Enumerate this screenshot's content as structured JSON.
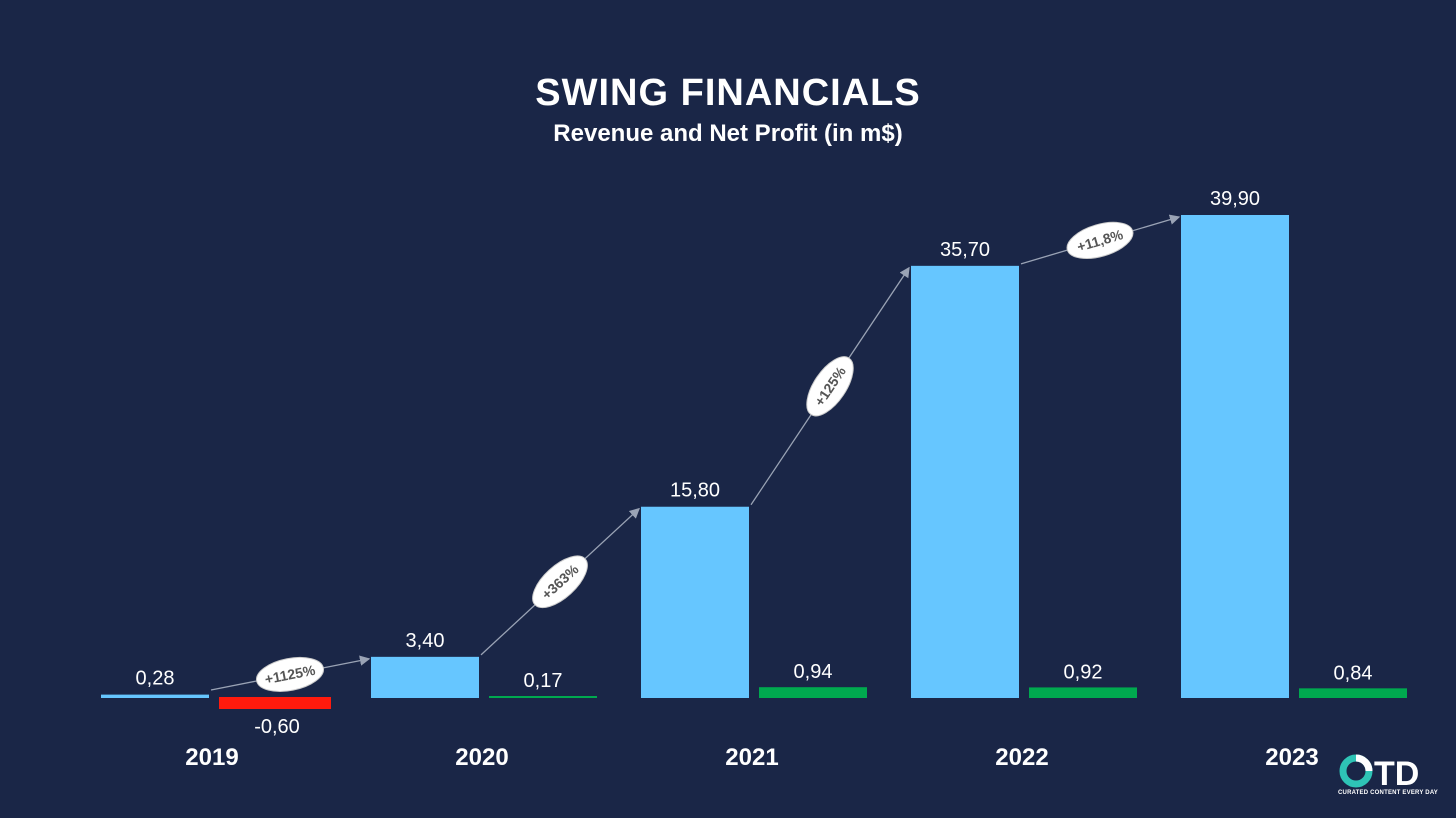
{
  "header": {
    "title": "SWING FINANCIALS",
    "subtitle": "Revenue and Net Profit (in m$)"
  },
  "chart_data": {
    "type": "bar",
    "title": "SWING FINANCIALS",
    "subtitle": "Revenue and Net Profit (in m$)",
    "categories": [
      "2019",
      "2020",
      "2021",
      "2022",
      "2023"
    ],
    "series": [
      {
        "name": "Revenue",
        "values": [
          0.28,
          3.4,
          15.8,
          35.7,
          39.9
        ],
        "labels": [
          "0,28",
          "3,40",
          "15,80",
          "35,70",
          "39,90"
        ],
        "color": "#66c6ff"
      },
      {
        "name": "Net Profit",
        "values": [
          -0.6,
          0.17,
          0.94,
          0.92,
          0.84
        ],
        "labels": [
          "-0,60",
          "0,17",
          "0,94",
          "0,92",
          "0,84"
        ],
        "color_positive": "#00a94f",
        "color_negative": "#ff1a0d"
      }
    ],
    "growth_annotations": [
      {
        "from": "2019",
        "to": "2020",
        "label": "+1125%"
      },
      {
        "from": "2020",
        "to": "2021",
        "label": "+363%"
      },
      {
        "from": "2021",
        "to": "2022",
        "label": "+125%"
      },
      {
        "from": "2022",
        "to": "2023",
        "label": "+11,8%"
      }
    ],
    "xlabel": "",
    "ylabel": "",
    "ylim": [
      -0.6,
      39.9
    ],
    "grid": false,
    "legend": "none"
  },
  "logo": {
    "name": "OTD",
    "tagline": "CURATED CONTENT EVERY DAY"
  }
}
